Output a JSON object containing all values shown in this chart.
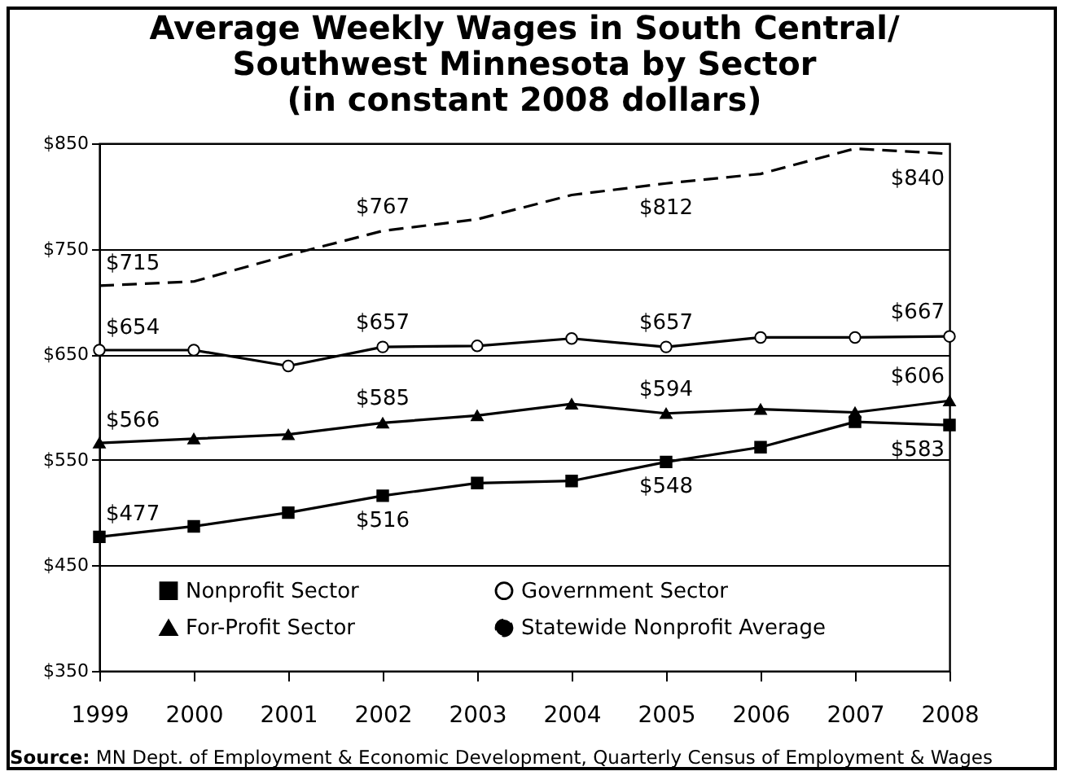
{
  "chart_data": {
    "type": "line",
    "title": "Average Weekly Wages in South Central/\nSouthwest Minnesota by Sector\n(in constant 2008 dollars)",
    "annotations": [
      "Source: MN Dept. of Employment & Economic Development, Quarterly Census of Employment & Wages"
    ],
    "x": [
      1999,
      2000,
      2001,
      2002,
      2003,
      2004,
      2005,
      2006,
      2007,
      2008
    ],
    "series": [
      {
        "name": "Nonprofit Sector",
        "color": "#000000",
        "marker": "square",
        "line_style": "solid",
        "values": [
          477,
          487,
          500,
          516,
          528,
          530,
          548,
          562,
          586,
          583
        ],
        "value_labels": [
          "$477",
          null,
          null,
          "$516",
          null,
          null,
          "$548",
          null,
          null,
          "$583"
        ]
      },
      {
        "name": "Government Sector",
        "color": "#000000",
        "marker": "circle",
        "line_style": "solid",
        "values": [
          654,
          654,
          639,
          657,
          658,
          665,
          657,
          666,
          666,
          667
        ],
        "value_labels": [
          "$654",
          null,
          null,
          "$657",
          null,
          null,
          "$657",
          null,
          null,
          "$667"
        ]
      },
      {
        "name": "For-Profit Sector",
        "color": "#000000",
        "marker": "triangle",
        "line_style": "solid",
        "values": [
          566,
          570,
          574,
          585,
          592,
          603,
          594,
          598,
          595,
          606
        ],
        "value_labels": [
          "$566",
          null,
          null,
          "$585",
          null,
          null,
          "$594",
          null,
          null,
          "$606"
        ]
      },
      {
        "name": "Statewide Nonprofit Average",
        "color": "#000000",
        "marker": "none",
        "line_style": "dashed",
        "values": [
          715,
          719,
          744,
          767,
          778,
          801,
          812,
          821,
          845,
          840
        ],
        "value_labels": [
          "$715",
          null,
          null,
          "$767",
          null,
          null,
          "$812",
          null,
          null,
          "$840"
        ]
      }
    ],
    "xlim": [
      1999,
      2008
    ],
    "xticks": [
      1999,
      2000,
      2001,
      2002,
      2003,
      2004,
      2005,
      2006,
      2007,
      2008
    ],
    "ylim": [
      350,
      850
    ],
    "yticks": [
      {
        "value": 350,
        "label": "$350"
      },
      {
        "value": 450,
        "label": "$450"
      },
      {
        "value": 550,
        "label": "$550"
      },
      {
        "value": 650,
        "label": "$650"
      },
      {
        "value": 750,
        "label": "$750"
      },
      {
        "value": 850,
        "label": "$850"
      }
    ],
    "grid": "y",
    "legend": "bottom"
  }
}
